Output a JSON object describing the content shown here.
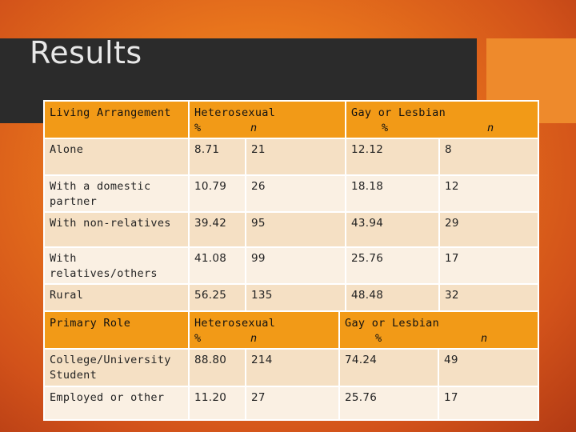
{
  "title": "Results",
  "table1": {
    "headers": {
      "col1": "Living Arrangement",
      "col2": "Heterosexual",
      "col2_pct": "%",
      "col2_n": "n",
      "col3": "Gay or Lesbian",
      "col3_pct": "%",
      "col3_n": "n"
    },
    "rows": [
      {
        "label": "Alone",
        "het_pct": "8.71",
        "het_n": "21",
        "gl_pct": "12.12",
        "gl_n": "8"
      },
      {
        "label": "With a domestic partner",
        "het_pct": "10.79",
        "het_n": "26",
        "gl_pct": "18.18",
        "gl_n": "12"
      },
      {
        "label": "With non-relatives",
        "het_pct": "39.42",
        "het_n": "95",
        "gl_pct": "43.94",
        "gl_n": "29"
      },
      {
        "label": "With relatives/others",
        "het_pct": "41.08",
        "het_n": "99",
        "gl_pct": "25.76",
        "gl_n": "17"
      },
      {
        "label": "Rural",
        "het_pct": "56.25",
        "het_n": "135",
        "gl_pct": "48.48",
        "gl_n": "32"
      }
    ]
  },
  "table2": {
    "headers": {
      "col1": "Primary Role",
      "col2": "Heterosexual",
      "col2_pct": "%",
      "col2_n": "n",
      "col3": "Gay or Lesbian",
      "col3_pct": "%",
      "col3_n": "n"
    },
    "rows": [
      {
        "label": "College/University Student",
        "het_pct": "88.80",
        "het_n": "214",
        "gl_pct": "74.24",
        "gl_n": "49"
      },
      {
        "label": "Employed or other",
        "het_pct": "11.20",
        "het_n": "27",
        "gl_pct": "25.76",
        "gl_n": "17"
      }
    ]
  }
}
